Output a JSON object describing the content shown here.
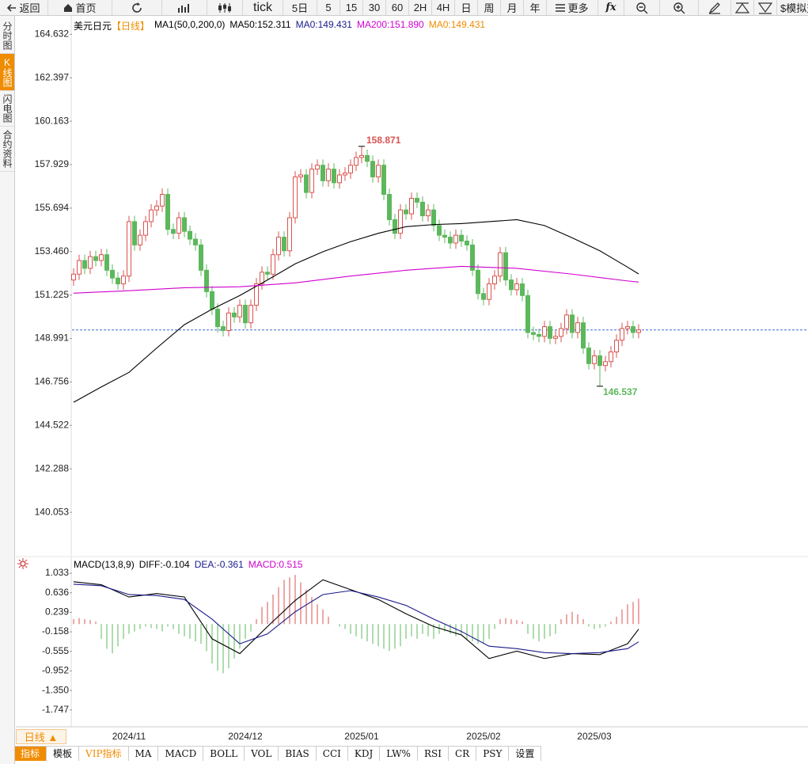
{
  "toolbar": [
    "返回",
    "首页",
    "tick",
    "5日",
    "5",
    "15",
    "30",
    "60",
    "2H",
    "4H",
    "日",
    "周",
    "月",
    "年",
    "更多",
    "fx",
    "$模拟交"
  ],
  "side_tabs": [
    "分时图",
    "K线图",
    "闪电图",
    "合约资料"
  ],
  "period_button": "日线 ▲",
  "bottom_tabs": [
    "指标",
    "模板",
    "VIP指标",
    "MA",
    "MACD",
    "BOLL",
    "VOL",
    "BIAS",
    "CCI",
    "KDJ",
    "LW%",
    "RSI",
    "CR",
    "PSY",
    "设置"
  ],
  "chart_data": [
    {
      "type": "candlestick",
      "title": "美元日元",
      "period": "【日线】",
      "legend": [
        {
          "text": "MA1(50,0,200,0)",
          "color": "#000000"
        },
        {
          "text": "MA50:152.311",
          "color": "#000000"
        },
        {
          "text": "MA0:149.431",
          "color": "#1a1a8c"
        },
        {
          "text": "MA200:151.890",
          "color": "#d000d0"
        },
        {
          "text": "MA0:149.431",
          "color": "#f08c00"
        }
      ],
      "categories": [
        null,
        null,
        null,
        null,
        null,
        null,
        null,
        null,
        null,
        null,
        "2024/11",
        null,
        null,
        null,
        null,
        null,
        null,
        null,
        null,
        null,
        null,
        null,
        null,
        null,
        null,
        null,
        null,
        null,
        null,
        null,
        null,
        "2024/12",
        null,
        null,
        null,
        null,
        null,
        null,
        null,
        null,
        null,
        null,
        null,
        null,
        null,
        null,
        null,
        null,
        null,
        null,
        null,
        null,
        "2025/01",
        null,
        null,
        null,
        null,
        null,
        null,
        null,
        null,
        null,
        null,
        null,
        null,
        null,
        null,
        null,
        null,
        null,
        null,
        null,
        null,
        null,
        "2025/02",
        null,
        null,
        null,
        null,
        null,
        null,
        null,
        null,
        null,
        null,
        null,
        null,
        null,
        null,
        null,
        null,
        null,
        null,
        null,
        "2025/03",
        null,
        null,
        null,
        null,
        null,
        null,
        null,
        null
      ],
      "open": [
        152.0,
        152.3,
        153.0,
        152.6,
        153.2,
        153.0,
        153.3,
        152.5,
        152.1,
        151.8,
        152.2,
        155.0,
        153.8,
        154.3,
        155.0,
        155.6,
        155.8,
        156.4,
        154.6,
        154.4,
        155.2,
        154.5,
        154.1,
        153.8,
        152.5,
        151.4,
        150.5,
        149.6,
        149.4,
        150.3,
        150.1,
        150.7,
        149.8,
        150.7,
        151.8,
        152.4,
        152.3,
        153.3,
        154.2,
        153.5,
        155.2,
        157.3,
        157.4,
        156.5,
        157.7,
        157.9,
        157.1,
        157.7,
        157.0,
        157.4,
        157.5,
        157.9,
        158.3,
        158.4,
        158.1,
        157.3,
        157.9,
        156.4,
        155.1,
        154.4,
        155.6,
        155.4,
        156.2,
        156.0,
        155.3,
        155.6,
        154.8,
        154.3,
        154.2,
        153.9,
        154.3,
        154.0,
        153.8,
        152.5,
        151.3,
        151.0,
        151.8,
        152.2,
        153.4,
        152.0,
        151.5,
        151.8,
        151.2,
        149.3,
        149.2,
        149.1,
        149.6,
        149.0,
        149.1,
        149.5,
        150.2,
        149.3,
        149.8,
        148.5,
        147.7,
        148.1,
        147.6,
        147.8,
        148.3,
        148.9,
        149.5,
        149.6,
        149.3
      ],
      "high": [
        152.6,
        153.3,
        153.3,
        153.5,
        153.5,
        153.6,
        153.6,
        152.8,
        152.4,
        152.5,
        155.3,
        155.3,
        154.6,
        155.3,
        155.9,
        156.1,
        156.7,
        156.7,
        154.9,
        155.5,
        155.5,
        154.8,
        154.4,
        154.1,
        152.8,
        151.7,
        150.8,
        149.9,
        150.6,
        150.6,
        151.0,
        151.0,
        151.0,
        152.1,
        152.7,
        152.7,
        153.6,
        154.5,
        154.5,
        155.5,
        157.6,
        157.7,
        157.7,
        158.0,
        158.2,
        158.2,
        158.0,
        158.0,
        157.7,
        157.8,
        158.2,
        158.6,
        158.871,
        158.7,
        158.4,
        158.2,
        158.2,
        156.7,
        155.4,
        155.9,
        155.9,
        156.5,
        156.5,
        156.3,
        155.9,
        155.9,
        155.1,
        154.6,
        154.5,
        154.6,
        154.6,
        154.3,
        154.1,
        152.8,
        151.6,
        152.1,
        152.5,
        153.7,
        153.7,
        152.3,
        152.1,
        152.1,
        151.5,
        149.6,
        149.5,
        149.9,
        149.9,
        149.4,
        149.8,
        150.5,
        150.5,
        150.1,
        150.1,
        148.8,
        148.4,
        148.4,
        148.1,
        148.6,
        149.2,
        149.8,
        149.9,
        149.9,
        149.731
      ],
      "low": [
        151.7,
        152.0,
        152.3,
        152.3,
        152.7,
        152.7,
        152.2,
        151.8,
        151.5,
        151.5,
        151.9,
        153.5,
        153.5,
        154.0,
        154.7,
        155.3,
        155.5,
        154.3,
        154.1,
        154.1,
        154.2,
        153.8,
        153.5,
        152.2,
        151.1,
        150.2,
        149.3,
        149.1,
        149.1,
        149.8,
        149.8,
        149.5,
        149.5,
        150.4,
        151.5,
        152.0,
        152.0,
        153.0,
        153.2,
        153.2,
        154.9,
        157.0,
        156.2,
        156.2,
        157.4,
        156.8,
        156.8,
        156.7,
        156.7,
        157.1,
        157.2,
        157.6,
        158.0,
        157.8,
        157.0,
        157.0,
        156.1,
        154.8,
        154.1,
        154.1,
        155.1,
        155.1,
        155.7,
        155.0,
        155.0,
        154.5,
        154.0,
        153.9,
        153.6,
        153.6,
        153.7,
        153.5,
        152.2,
        151.0,
        150.7,
        150.7,
        151.5,
        151.9,
        151.7,
        151.2,
        151.2,
        150.9,
        149.0,
        148.9,
        148.8,
        148.8,
        148.7,
        148.7,
        148.8,
        149.2,
        149.0,
        149.0,
        148.2,
        147.4,
        147.4,
        146.537,
        147.3,
        147.5,
        148.0,
        148.6,
        149.2,
        149.0,
        149.0
      ],
      "close": [
        152.3,
        153.0,
        152.6,
        153.2,
        153.0,
        153.3,
        152.5,
        152.1,
        151.8,
        152.2,
        155.0,
        153.8,
        154.3,
        155.0,
        155.6,
        155.8,
        156.4,
        154.6,
        154.4,
        155.2,
        154.5,
        154.1,
        153.8,
        152.5,
        151.4,
        150.5,
        149.6,
        149.4,
        150.3,
        150.1,
        150.7,
        149.8,
        150.7,
        151.8,
        152.4,
        152.3,
        153.3,
        154.2,
        153.5,
        155.2,
        157.3,
        157.4,
        156.5,
        157.7,
        157.9,
        157.1,
        157.7,
        157.0,
        157.4,
        157.5,
        157.9,
        158.3,
        158.4,
        158.1,
        157.3,
        157.9,
        156.4,
        155.1,
        154.4,
        155.6,
        155.4,
        156.2,
        156.0,
        155.3,
        155.6,
        154.8,
        154.3,
        154.2,
        153.9,
        154.3,
        154.0,
        153.8,
        152.5,
        151.3,
        151.0,
        151.8,
        152.2,
        153.4,
        152.0,
        151.5,
        151.8,
        151.2,
        149.3,
        149.2,
        149.1,
        149.6,
        149.0,
        149.1,
        149.5,
        150.2,
        149.3,
        149.8,
        148.5,
        147.7,
        148.1,
        147.6,
        147.8,
        148.3,
        148.9,
        149.5,
        149.6,
        149.3,
        149.431
      ],
      "up_color": "#d9534f",
      "down_color": "#5cb85c",
      "series": [
        {
          "color": "#000000",
          "x": [
            0,
            5,
            10,
            15,
            20,
            25,
            30,
            35,
            40,
            45,
            50,
            55,
            60,
            65,
            70,
            75,
            80,
            85,
            90,
            95,
            100,
            102
          ],
          "values": [
            145.71,
            146.5,
            147.25,
            148.5,
            149.7,
            150.5,
            151.2,
            152.0,
            152.83,
            153.45,
            153.97,
            154.4,
            154.74,
            154.85,
            154.9,
            155.0,
            155.1,
            154.8,
            154.17,
            153.5,
            152.66,
            152.311
          ]
        },
        {
          "color": "#d000d0",
          "x": [
            0,
            10,
            20,
            30,
            40,
            50,
            60,
            70,
            80,
            90,
            100,
            102
          ],
          "values": [
            151.32,
            151.45,
            151.6,
            151.65,
            151.85,
            152.2,
            152.5,
            152.7,
            152.6,
            152.3,
            151.95,
            151.89
          ]
        }
      ],
      "reference_line": {
        "value": 149.431,
        "color": "#3a6fd8"
      },
      "ylim": [
        137.9,
        165.5
      ],
      "yticks": [
        164.632,
        162.397,
        160.163,
        157.929,
        155.694,
        {
          "value": 153.46,
          "label": "153.460"
        },
        151.225,
        148.991,
        146.756,
        144.522,
        142.288,
        140.053
      ]
    },
    {
      "type": "macd",
      "legend": [
        {
          "text": "MACD(13,8,9)",
          "color": "#000000"
        },
        {
          "text": "DIFF:-0.104",
          "color": "#000000"
        },
        {
          "text": "DEA:-0.361",
          "color": "#1a1a8c"
        },
        {
          "text": "MACD:0.515",
          "color": "#d000d0"
        }
      ],
      "histogram": [
        0.1,
        0.12,
        0.1,
        0.08,
        0.05,
        -0.3,
        -0.5,
        -0.6,
        -0.45,
        -0.3,
        -0.2,
        -0.15,
        -0.1,
        -0.05,
        -0.08,
        -0.1,
        -0.15,
        -0.05,
        -0.1,
        -0.2,
        -0.25,
        -0.3,
        -0.35,
        -0.4,
        -0.55,
        -0.8,
        -0.95,
        -1.0,
        -0.9,
        -0.7,
        -0.5,
        -0.3,
        -0.15,
        0.1,
        0.35,
        0.45,
        0.6,
        0.75,
        0.9,
        0.95,
        1.0,
        0.85,
        0.7,
        0.55,
        0.4,
        0.3,
        0.15,
        0.0,
        -0.05,
        -0.1,
        -0.2,
        -0.25,
        -0.3,
        -0.35,
        -0.4,
        -0.45,
        -0.5,
        -0.55,
        -0.5,
        -0.45,
        -0.3,
        -0.25,
        -0.3,
        -0.2,
        -0.25,
        -0.3,
        -0.2,
        -0.15,
        -0.2,
        -0.25,
        -0.2,
        -0.3,
        -0.35,
        -0.4,
        -0.4,
        -0.3,
        -0.1,
        0.1,
        0.12,
        0.1,
        0.08,
        0.05,
        -0.2,
        -0.3,
        -0.35,
        -0.3,
        -0.25,
        -0.2,
        0.1,
        0.2,
        0.25,
        0.2,
        0.1,
        -0.05,
        -0.1,
        -0.08,
        -0.05,
        0.05,
        0.15,
        0.3,
        0.4,
        0.45,
        0.515
      ],
      "up_color": "#d9534f",
      "down_color": "#5cb85c",
      "series": [
        {
          "color": "#000000",
          "x": [
            0,
            5,
            10,
            15,
            20,
            25,
            30,
            35,
            40,
            45,
            50,
            55,
            60,
            65,
            70,
            75,
            80,
            85,
            90,
            95,
            100,
            102
          ],
          "values": [
            0.86,
            0.8,
            0.55,
            0.62,
            0.55,
            -0.3,
            -0.6,
            -0.05,
            0.48,
            0.9,
            0.7,
            0.5,
            0.21,
            -0.05,
            -0.22,
            -0.7,
            -0.55,
            -0.7,
            -0.6,
            -0.62,
            -0.4,
            -0.104
          ]
        },
        {
          "color": "#1a1a8c",
          "x": [
            0,
            5,
            10,
            15,
            20,
            25,
            30,
            35,
            40,
            45,
            50,
            55,
            60,
            65,
            70,
            75,
            80,
            85,
            90,
            95,
            100,
            102
          ],
          "values": [
            0.81,
            0.78,
            0.6,
            0.58,
            0.5,
            0.1,
            -0.4,
            -0.2,
            0.25,
            0.6,
            0.68,
            0.55,
            0.38,
            0.1,
            -0.15,
            -0.45,
            -0.5,
            -0.58,
            -0.6,
            -0.58,
            -0.5,
            -0.361
          ]
        }
      ],
      "ylim": [
        -2.04,
        1.34
      ],
      "yticks": [
        1.033,
        0.636,
        0.239,
        -0.158,
        -0.555,
        -0.952,
        {
          "value": -1.35,
          "label": "-1.350"
        },
        -1.747
      ]
    }
  ]
}
